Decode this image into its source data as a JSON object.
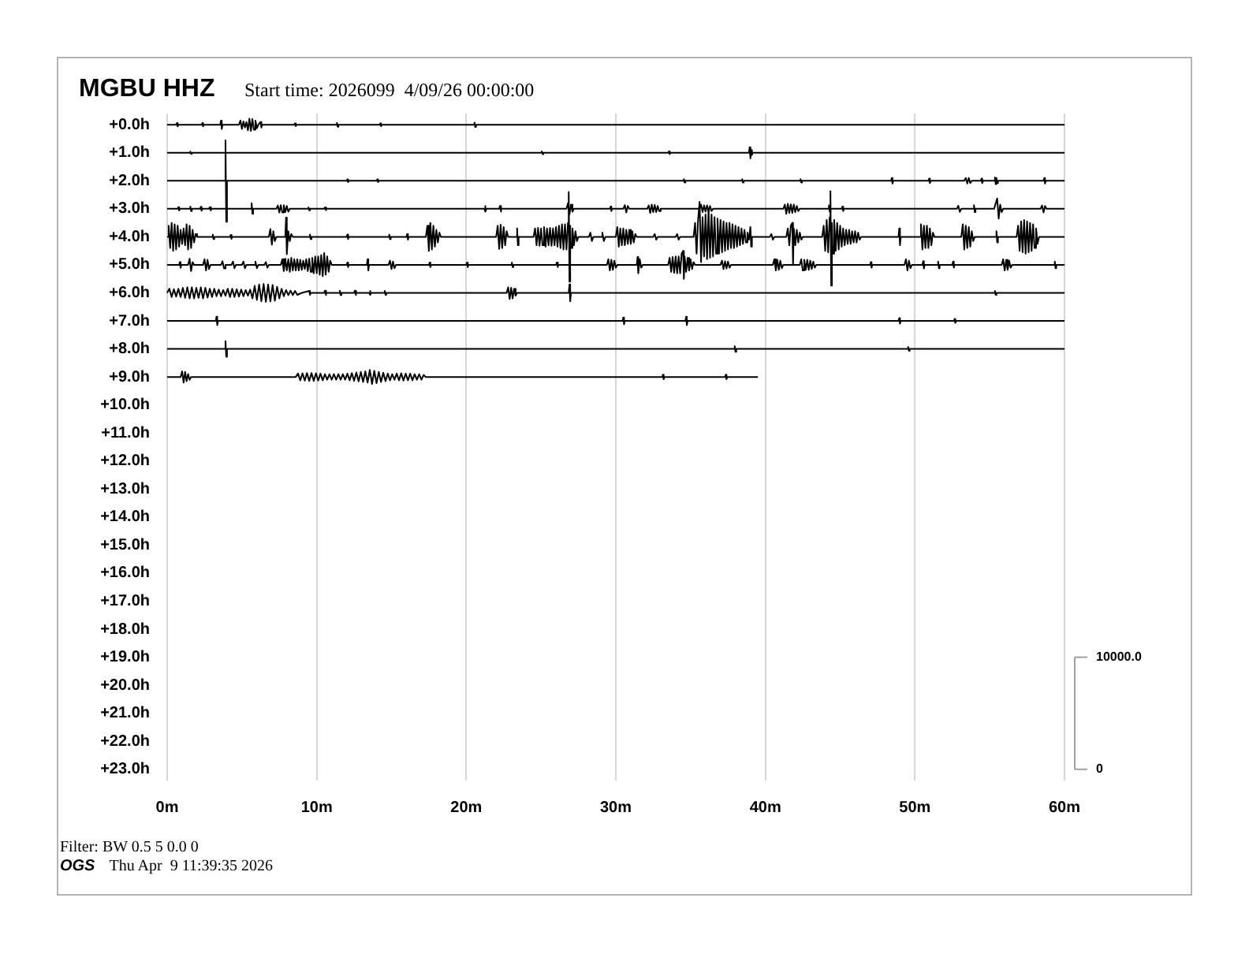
{
  "chart_data": {
    "type": "line",
    "title": "MGBU HHZ",
    "subtitle": "Start time: 2026099  4/09/26 00:00:00",
    "xlim": [
      0,
      60
    ],
    "xticks": [
      {
        "value": 0,
        "label": "0m"
      },
      {
        "value": 10,
        "label": "10m"
      },
      {
        "value": 20,
        "label": "20m"
      },
      {
        "value": 30,
        "label": "30m"
      },
      {
        "value": 40,
        "label": "40m"
      },
      {
        "value": 50,
        "label": "50m"
      },
      {
        "value": 60,
        "label": "60m"
      }
    ],
    "ylim": [
      23.4,
      -0.4
    ],
    "yticks": [
      {
        "value": 0,
        "label": "+0.0h"
      },
      {
        "value": 1,
        "label": "+1.0h"
      },
      {
        "value": 2,
        "label": "+2.0h"
      },
      {
        "value": 3,
        "label": "+3.0h"
      },
      {
        "value": 4,
        "label": "+4.0h"
      },
      {
        "value": 5,
        "label": "+5.0h"
      },
      {
        "value": 6,
        "label": "+6.0h"
      },
      {
        "value": 7,
        "label": "+7.0h"
      },
      {
        "value": 8,
        "label": "+8.0h"
      },
      {
        "value": 9,
        "label": "+9.0h"
      },
      {
        "value": 10,
        "label": "+10.0h"
      },
      {
        "value": 11,
        "label": "+11.0h"
      },
      {
        "value": 12,
        "label": "+12.0h"
      },
      {
        "value": 13,
        "label": "+13.0h"
      },
      {
        "value": 14,
        "label": "+14.0h"
      },
      {
        "value": 15,
        "label": "+15.0h"
      },
      {
        "value": 16,
        "label": "+16.0h"
      },
      {
        "value": 17,
        "label": "+17.0h"
      },
      {
        "value": 18,
        "label": "+18.0h"
      },
      {
        "value": 19,
        "label": "+19.0h"
      },
      {
        "value": 20,
        "label": "+20.0h"
      },
      {
        "value": 21,
        "label": "+21.0h"
      },
      {
        "value": 22,
        "label": "+22.0h"
      },
      {
        "value": 23,
        "label": "+23.0h"
      }
    ],
    "y2lim": [
      -1000,
      58500
    ],
    "y2ticks": [
      0,
      {
        "value": 10000,
        "label": "10000.0"
      }
    ],
    "grid": "x",
    "annotations": [
      "Filter: BW 0.5 5 0.0 0",
      "OGS",
      "Thu Apr  9 11:39:35 2026"
    ],
    "series": [
      {
        "color": "#000000",
        "x": [
          0,
          0.6,
          0.65,
          0.7,
          0.75,
          2.3,
          2.35,
          2.4,
          2.45,
          3.55,
          3.6,
          3.65,
          3.7,
          4.8,
          4.9,
          5.0,
          5.1,
          5.2,
          5.3,
          5.4,
          5.5,
          5.6,
          5.7,
          5.8,
          5.9,
          6.0,
          6.1,
          6.25,
          6.3,
          6.35,
          8.5,
          8.55,
          8.6,
          8.65,
          11.3,
          11.35,
          11.4,
          11.45,
          14.2,
          14.25,
          14.3,
          14.35,
          20.5,
          20.55,
          20.6,
          20.65,
          60
        ],
        "values": [
          0,
          0,
          -0.06,
          0.06,
          0,
          0,
          -0.06,
          0.06,
          0,
          0,
          -0.15,
          0.15,
          0,
          0,
          -0.15,
          0.15,
          -0.12,
          0.1,
          -0.1,
          0.2,
          -0.22,
          0.22,
          -0.2,
          0.18,
          -0.15,
          0.12,
          0,
          -0.1,
          0.1,
          0,
          0,
          -0.05,
          0.05,
          0,
          0,
          -0.07,
          0.07,
          0,
          0,
          -0.05,
          0.05,
          0,
          0,
          -0.08,
          0.08,
          0,
          0
        ]
      },
      {
        "color": "#000000",
        "x": [
          0,
          1.5,
          1.55,
          1.6,
          1.65,
          25,
          25.05,
          25.1,
          25.15,
          33.5,
          33.55,
          33.6,
          33.65,
          38.9,
          38.95,
          39.0,
          39.05,
          39.1,
          39.15,
          60
        ],
        "values": [
          1,
          1,
          0.96,
          1.04,
          1,
          1,
          0.95,
          1.05,
          1,
          1,
          0.95,
          1.05,
          1,
          1,
          0.8,
          1.2,
          0.9,
          1.08,
          1,
          1
        ]
      },
      {
        "color": "#000000",
        "x": [
          0,
          3.85,
          3.9,
          3.95,
          4.0,
          12,
          12.05,
          12.1,
          12.15,
          14,
          14.05,
          14.1,
          14.15,
          34.5,
          34.55,
          34.6,
          34.65,
          38.4,
          38.45,
          38.5,
          38.55,
          42.3,
          42.35,
          42.4,
          42.45,
          48.4,
          48.45,
          48.5,
          48.55,
          50.9,
          50.95,
          51.0,
          51.05,
          53.3,
          53.4,
          53.5,
          53.6,
          53.7,
          53.8,
          54.4,
          54.45,
          54.5,
          54.55,
          55.3,
          55.35,
          55.4,
          55.45,
          55.5,
          55.55,
          58.6,
          58.65,
          58.7,
          58.75,
          60
        ],
        "values": [
          2,
          2,
          0.56,
          3.46,
          2,
          2,
          1.95,
          2.05,
          2,
          2,
          1.95,
          2.05,
          2,
          2,
          1.94,
          2.06,
          2,
          2,
          1.94,
          2.06,
          2,
          2,
          1.94,
          2.06,
          2,
          2,
          1.9,
          2.1,
          2,
          2,
          1.92,
          2.08,
          2,
          2,
          1.9,
          2.1,
          1.9,
          2.08,
          2,
          2,
          1.92,
          2.08,
          2,
          2,
          1.88,
          2.12,
          1.9,
          2.08,
          2,
          2,
          1.9,
          2.1,
          2,
          2
        ]
      },
      {
        "color": "#000000",
        "x": [
          0,
          0.7,
          0.75,
          0.8,
          0.85,
          1.5,
          1.55,
          1.6,
          1.65,
          2.2,
          2.25,
          2.3,
          2.35,
          2.8,
          2.85,
          2.9,
          2.95,
          5.6,
          5.65,
          5.7,
          5.75,
          7.3,
          7.4,
          7.5,
          7.6,
          7.7,
          7.8,
          7.9,
          8.0,
          8.1,
          8.2,
          9.4,
          9.45,
          9.5,
          9.55,
          10.5,
          10.55,
          10.6,
          10.65,
          21.2,
          21.25,
          21.3,
          21.35,
          22.2,
          22.25,
          22.3,
          22.35,
          26.7,
          26.8,
          26.9,
          27.0,
          27.1,
          27.2,
          29.6,
          29.65,
          29.7,
          29.75,
          30.5,
          30.6,
          30.7,
          30.8,
          30.9,
          32.1,
          32.2,
          32.3,
          32.4,
          32.5,
          32.6,
          32.7,
          32.8,
          32.9,
          33.0,
          35.6,
          35.7,
          35.8,
          35.9,
          36.0,
          36.1,
          36.2,
          36.3,
          36.4,
          36.5,
          41.2,
          41.3,
          41.4,
          41.5,
          41.6,
          41.7,
          41.8,
          41.9,
          42.0,
          42.1,
          42.2,
          42.3,
          44.2,
          44.25,
          44.3,
          44.35,
          45.1,
          45.15,
          45.2,
          45.25,
          52.8,
          52.9,
          53.0,
          53.1,
          53.9,
          53.95,
          54.0,
          54.05,
          55.3,
          55.4,
          55.5,
          55.6,
          55.7,
          55.8,
          55.9,
          58.4,
          58.5,
          58.6,
          58.7,
          58.8,
          60
        ],
        "values": [
          3,
          3,
          2.94,
          3.06,
          3,
          3,
          2.92,
          3.08,
          3,
          3,
          2.93,
          3.07,
          3,
          3,
          2.94,
          3.06,
          3,
          3,
          2.8,
          3.18,
          3,
          3,
          2.88,
          3.13,
          2.87,
          3.13,
          2.87,
          3.12,
          2.9,
          3.1,
          3,
          3,
          2.95,
          3.05,
          3,
          3,
          2.95,
          3.05,
          3,
          3,
          2.9,
          3.1,
          3,
          3,
          2.9,
          3.1,
          3,
          3,
          2.8,
          3.2,
          2.85,
          3.1,
          3,
          3,
          2.92,
          3.08,
          3,
          3,
          2.87,
          3.13,
          2.9,
          3,
          3,
          2.88,
          3.15,
          2.85,
          3.12,
          2.86,
          3.12,
          2.9,
          3.08,
          3,
          3,
          2.85,
          3.12,
          2.88,
          3.1,
          2.88,
          3.1,
          2.9,
          3.08,
          3,
          3,
          2.85,
          3.18,
          2.82,
          3.15,
          2.84,
          3.15,
          2.85,
          3.12,
          2.9,
          3.08,
          3,
          3,
          2.88,
          3.1,
          3,
          3,
          2.92,
          3.08,
          3,
          3,
          2.89,
          3.11,
          3,
          3,
          2.87,
          3.12,
          3,
          3,
          2.8,
          2.63,
          3.35,
          2.85,
          3.12,
          3,
          3,
          2.88,
          3.13,
          2.9,
          3,
          3
        ]
      },
      {
        "color": "#000000",
        "x": [
          0,
          0.1,
          0.2,
          0.3,
          0.4,
          0.5,
          0.6,
          0.7,
          0.8,
          0.9,
          1.0,
          1.1,
          1.2,
          1.3,
          1.4,
          1.5,
          1.6,
          1.7,
          1.8,
          1.9,
          2.0,
          3.0,
          3.05,
          3.1,
          3.15,
          4.2,
          4.25,
          4.3,
          4.35,
          6.8,
          6.9,
          7.0,
          7.1,
          7.2,
          7.3,
          7.9,
          7.95,
          8.0,
          8.1,
          8.2,
          8.3,
          8.4,
          9.5,
          9.55,
          9.6,
          9.65,
          12,
          12.05,
          12.1,
          12.15,
          14.8,
          14.85,
          14.9,
          14.95,
          16,
          16.05,
          16.1,
          16.15,
          17.3,
          17.4,
          17.5,
          17.6,
          17.7,
          17.8,
          17.9,
          18.0,
          18.1,
          18.2,
          18.3,
          22.0,
          22.1,
          22.2,
          22.3,
          22.4,
          22.5,
          22.6,
          22.7,
          22.8,
          23.35,
          23.4,
          23.45,
          23.5,
          24.5,
          24.6,
          24.7,
          24.8,
          24.9,
          25.0,
          25.1,
          25.2,
          25.3,
          25.4,
          25.5,
          25.6,
          25.7,
          25.8,
          25.9,
          26.0,
          26.1,
          26.2,
          26.3,
          26.4,
          26.5,
          26.6,
          26.7,
          26.8,
          26.85,
          26.9,
          26.95,
          27.0,
          27.1,
          27.2,
          27.3,
          27.4,
          27.5,
          28.2,
          28.3,
          28.4,
          28.5,
          29.0,
          29.1,
          29.2,
          29.3,
          30.0,
          30.1,
          30.2,
          30.3,
          30.4,
          30.5,
          30.6,
          30.7,
          30.8,
          30.9,
          31.0,
          31.1,
          31.2,
          31.3,
          31.4,
          32.5,
          32.6,
          32.7,
          32.8,
          34,
          34.1,
          34.2,
          34.3,
          35.2,
          35.3,
          35.4,
          35.5,
          35.6,
          35.7,
          35.8,
          35.9,
          36.0,
          36.1,
          36.2,
          36.3,
          36.4,
          36.5,
          36.6,
          36.7,
          36.8,
          36.9,
          37.0,
          37.1,
          37.2,
          37.3,
          37.4,
          37.5,
          37.6,
          37.7,
          37.8,
          37.9,
          38.0,
          38.1,
          38.2,
          38.3,
          38.4,
          38.5,
          38.6,
          38.7,
          38.8,
          38.9,
          39.0,
          39.05,
          39.1,
          40.3,
          40.4,
          40.5,
          40.6,
          41.4,
          41.5,
          41.6,
          41.7,
          41.8,
          41.85,
          41.9,
          42.0,
          42.1,
          42.2,
          42.3,
          42.4,
          42.5,
          43.8,
          43.9,
          44.0,
          44.1,
          44.2,
          44.3,
          44.35,
          44.4,
          44.45,
          44.5,
          44.6,
          44.7,
          44.8,
          44.9,
          45.0,
          45.1,
          45.2,
          45.3,
          45.4,
          45.5,
          45.6,
          45.7,
          45.8,
          45.9,
          46.0,
          46.1,
          46.2,
          46.3,
          46.4,
          48.9,
          48.95,
          49.0,
          49.05,
          50.3,
          50.4,
          50.5,
          50.6,
          50.7,
          50.8,
          50.9,
          51.0,
          51.1,
          51.2,
          51.3,
          53.1,
          53.2,
          53.3,
          53.4,
          53.5,
          53.6,
          53.7,
          53.8,
          53.9,
          54.0,
          55.4,
          55.45,
          55.5,
          55.55,
          56.8,
          56.9,
          57.0,
          57.1,
          57.2,
          57.3,
          57.4,
          57.5,
          57.6,
          57.7,
          57.8,
          57.9,
          58.0,
          58.1,
          58.2,
          58.3,
          60
        ],
        "values": [
          4,
          3.6,
          4.4,
          3.5,
          4.5,
          3.55,
          4.45,
          3.6,
          4.35,
          3.75,
          4.25,
          3.7,
          4.3,
          3.55,
          4.45,
          3.6,
          4.4,
          3.75,
          4.2,
          3.9,
          4,
          4,
          3.92,
          4.08,
          4,
          4,
          3.93,
          4.07,
          4,
          4,
          3.72,
          4.28,
          3.8,
          4.15,
          4,
          4,
          3.31,
          4.62,
          3.8,
          4.15,
          3.9,
          4,
          4,
          3.92,
          4.08,
          4,
          4,
          3.92,
          4.08,
          4,
          4,
          3.92,
          4.08,
          4,
          4,
          3.9,
          4.1,
          4,
          4,
          3.6,
          4.5,
          3.5,
          4.45,
          3.6,
          4.35,
          3.75,
          4.2,
          3.85,
          4,
          4,
          3.6,
          4.43,
          3.57,
          4.4,
          3.65,
          4.3,
          3.8,
          4,
          4,
          3.7,
          4.3,
          4,
          4,
          3.7,
          4.3,
          3.68,
          4.32,
          3.7,
          4.3,
          3.65,
          4.35,
          3.7,
          4.3,
          3.68,
          4.32,
          3.7,
          4.3,
          3.65,
          4.35,
          3.6,
          4.4,
          3.55,
          4.45,
          3.55,
          4.45,
          3.5,
          2.4,
          5.6,
          3.6,
          4.4,
          3.7,
          4.3,
          3.8,
          4.15,
          4,
          4,
          3.85,
          4.15,
          4,
          4,
          3.85,
          4.15,
          4,
          4,
          3.65,
          4.35,
          3.7,
          4.3,
          3.7,
          4.3,
          3.75,
          4.25,
          3.75,
          4.25,
          3.8,
          4.2,
          3.9,
          4,
          4,
          3.9,
          4.1,
          4,
          4,
          3.9,
          4.1,
          4,
          4,
          3.5,
          4.6,
          3.4,
          2.75,
          4.9,
          3.3,
          4.7,
          3.2,
          4.8,
          3.0,
          4.75,
          3.2,
          4.7,
          3.3,
          4.6,
          3.35,
          4.6,
          3.4,
          4.55,
          3.45,
          4.5,
          3.5,
          4.45,
          3.5,
          4.4,
          3.55,
          4.4,
          3.6,
          4.35,
          3.65,
          4.3,
          3.7,
          4.25,
          3.75,
          4.2,
          3.85,
          4.1,
          3.65,
          4.35,
          4,
          4,
          3.9,
          4.1,
          4,
          4,
          3.7,
          4.3,
          3.6,
          3.5,
          5.0,
          3.7,
          4.3,
          3.75,
          4.2,
          3.85,
          4.1,
          4,
          4,
          3.6,
          4.5,
          3.4,
          4.55,
          3.3,
          2.37,
          5.74,
          3.5,
          4.6,
          3.4,
          4.5,
          3.5,
          4.45,
          3.6,
          4.35,
          3.7,
          4.3,
          3.75,
          4.25,
          3.75,
          4.25,
          3.8,
          4.2,
          3.8,
          4.2,
          3.85,
          4.1,
          4,
          4,
          3.7,
          4.3,
          4,
          4,
          3.55,
          4.45,
          3.6,
          4.4,
          3.6,
          4.4,
          3.7,
          4.3,
          3.85,
          4,
          4,
          3.55,
          4.45,
          3.6,
          4.4,
          3.65,
          4.35,
          3.8,
          4.15,
          4,
          4,
          3.8,
          4.2,
          4,
          4,
          3.6,
          4.5,
          3.45,
          4.55,
          3.4,
          4.6,
          3.45,
          4.55,
          3.5,
          4.5,
          3.55,
          4.4,
          3.7,
          4.25,
          4,
          4
        ]
      },
      {
        "color": "#000000",
        "x": [
          0,
          0.8,
          0.85,
          0.9,
          0.95,
          1.4,
          1.5,
          1.6,
          1.7,
          1.8,
          2.4,
          2.5,
          2.6,
          2.7,
          2.8,
          2.9,
          3.6,
          3.7,
          3.8,
          3.9,
          4.3,
          4.4,
          4.5,
          4.6,
          5.0,
          5.1,
          5.2,
          5.3,
          5.8,
          5.9,
          6.0,
          6.1,
          6.5,
          6.6,
          6.7,
          6.8,
          7.6,
          7.7,
          7.8,
          7.9,
          8.0,
          8.1,
          8.2,
          8.3,
          8.4,
          8.5,
          8.6,
          8.7,
          8.8,
          8.9,
          9.0,
          9.1,
          9.2,
          9.3,
          9.4,
          9.5,
          9.6,
          9.7,
          9.8,
          9.9,
          10.0,
          10.1,
          10.2,
          10.3,
          10.4,
          10.5,
          10.6,
          10.7,
          10.8,
          10.9,
          11.0,
          12,
          12.05,
          12.1,
          12.15,
          13.35,
          13.4,
          13.45,
          13.5,
          14.8,
          14.9,
          15.0,
          15.1,
          15.2,
          15.3,
          17.5,
          17.55,
          17.6,
          17.65,
          20,
          20.05,
          20.1,
          20.15,
          23,
          23.05,
          23.1,
          23.15,
          26,
          26.05,
          26.1,
          26.15,
          29.4,
          29.5,
          29.6,
          29.7,
          29.8,
          29.9,
          30.0,
          30.1,
          31.4,
          31.45,
          31.5,
          31.6,
          31.7,
          31.8,
          33.5,
          33.6,
          33.7,
          33.8,
          33.9,
          34.0,
          34.1,
          34.2,
          34.3,
          34.4,
          34.5,
          34.55,
          34.6,
          34.7,
          34.8,
          34.9,
          35.0,
          35.1,
          35.2,
          35.3,
          37.0,
          37.1,
          37.2,
          37.3,
          37.4,
          37.5,
          37.6,
          37.7,
          40.5,
          40.6,
          40.7,
          40.8,
          40.9,
          41.0,
          41.1,
          41.2,
          42.3,
          42.4,
          42.5,
          42.6,
          42.7,
          42.8,
          42.9,
          43.0,
          43.1,
          43.2,
          43.3,
          43.4,
          47,
          47.05,
          47.1,
          47.15,
          49.3,
          49.4,
          49.5,
          49.6,
          49.7,
          49.8,
          50.5,
          50.55,
          50.6,
          50.65,
          51.5,
          51.55,
          51.6,
          51.65,
          52.5,
          52.55,
          52.6,
          52.65,
          55.8,
          55.9,
          56.0,
          56.1,
          56.2,
          56.3,
          56.4,
          56.5,
          59.3,
          59.35,
          59.4,
          59.45,
          60
        ],
        "values": [
          5,
          5,
          4.9,
          5.1,
          5,
          5,
          4.78,
          5.22,
          4.9,
          5,
          5,
          4.8,
          5.2,
          4.82,
          5.15,
          5,
          5,
          4.87,
          5.13,
          5,
          5,
          4.88,
          5.12,
          5,
          5,
          4.88,
          5.12,
          5,
          5,
          4.88,
          5.12,
          5,
          5,
          4.9,
          5.1,
          5,
          5,
          4.8,
          5.22,
          4.78,
          5.2,
          4.8,
          5.25,
          4.75,
          5.2,
          4.8,
          5.2,
          4.8,
          5.2,
          4.82,
          5.18,
          4.85,
          5.15,
          4.8,
          5.22,
          4.78,
          5.25,
          4.75,
          5.3,
          4.7,
          5.3,
          4.7,
          5.35,
          4.65,
          5.4,
          4.58,
          5.35,
          4.7,
          5.25,
          4.85,
          5,
          5,
          4.92,
          5.08,
          5,
          5,
          4.8,
          5.2,
          5,
          5,
          4.85,
          5.15,
          4.88,
          5.12,
          5,
          5,
          4.92,
          5.08,
          5,
          5,
          4.92,
          5.08,
          5,
          5,
          4.92,
          5.08,
          5,
          5,
          4.92,
          5.08,
          5,
          5,
          4.8,
          5.2,
          4.82,
          5.18,
          4.85,
          5.1,
          5,
          5,
          4.72,
          5.3,
          4.8,
          5.1,
          5,
          5,
          4.75,
          5.25,
          4.72,
          5.28,
          4.7,
          5.3,
          4.7,
          5.3,
          4.6,
          4.5,
          5.5,
          4.7,
          5.25,
          4.75,
          5.2,
          4.8,
          5.15,
          4.9,
          5,
          5,
          4.85,
          5.15,
          4.87,
          5.13,
          4.88,
          5.1,
          5,
          5,
          4.8,
          5.2,
          4.82,
          5.18,
          4.85,
          5.12,
          5,
          5,
          4.8,
          5.2,
          4.82,
          5.18,
          4.82,
          5.18,
          4.85,
          5.15,
          4.88,
          5.1,
          5,
          5,
          4.9,
          5.1,
          5,
          5,
          4.8,
          5.2,
          4.85,
          5.12,
          5,
          5,
          4.87,
          5.13,
          5,
          5,
          4.88,
          5.12,
          5,
          5,
          4.88,
          5.1,
          5,
          5,
          4.8,
          5.2,
          4.82,
          5.18,
          4.85,
          5.1,
          5,
          5,
          4.88,
          5.12,
          5,
          5
        ]
      },
      {
        "color": "#000000",
        "x": [
          0,
          0.15,
          0.3,
          0.45,
          0.6,
          0.75,
          0.9,
          1.05,
          1.2,
          1.35,
          1.5,
          1.65,
          1.8,
          1.95,
          2.1,
          2.25,
          2.4,
          2.55,
          2.7,
          2.85,
          3.0,
          3.15,
          3.3,
          3.45,
          3.6,
          3.75,
          3.9,
          4.05,
          4.2,
          4.35,
          4.5,
          4.65,
          4.8,
          4.95,
          5.1,
          5.25,
          5.4,
          5.55,
          5.7,
          5.85,
          6.0,
          6.15,
          6.3,
          6.45,
          6.6,
          6.75,
          6.9,
          7.05,
          7.2,
          7.35,
          7.5,
          7.65,
          7.8,
          7.95,
          8.1,
          8.25,
          8.4,
          8.55,
          8.7,
          9.0,
          9.5,
          9.55,
          9.6,
          10.5,
          10.55,
          10.6,
          10.65,
          11.5,
          11.55,
          11.6,
          11.65,
          12.5,
          12.55,
          12.6,
          12.65,
          13.5,
          13.55,
          13.6,
          13.65,
          14.5,
          14.55,
          14.6,
          14.65,
          22.7,
          22.8,
          22.9,
          23.0,
          23.1,
          23.2,
          23.3,
          23.4,
          26.85,
          26.9,
          26.95,
          27.0,
          55.3,
          55.35,
          55.4,
          55.45,
          60
        ],
        "values": [
          6,
          5.85,
          6.15,
          5.87,
          6.13,
          5.85,
          6.15,
          5.82,
          6.18,
          5.8,
          6.2,
          5.8,
          6.2,
          5.82,
          6.18,
          5.8,
          6.2,
          5.82,
          6.17,
          5.85,
          6.15,
          5.85,
          6.12,
          5.88,
          6.12,
          5.9,
          6.1,
          5.85,
          6.15,
          5.85,
          6.15,
          5.87,
          6.13,
          5.88,
          6.12,
          5.9,
          6.1,
          5.88,
          6.2,
          5.75,
          6.25,
          5.7,
          6.3,
          5.68,
          6.32,
          5.7,
          6.3,
          5.72,
          6.28,
          5.78,
          6.2,
          5.85,
          6.12,
          5.9,
          6.08,
          5.92,
          6.08,
          5.93,
          6.07,
          6,
          5.93,
          6.07,
          6,
          6,
          5.92,
          6.08,
          6,
          6,
          5.92,
          6.08,
          6,
          6,
          5.92,
          6.08,
          6,
          6,
          5.93,
          6.07,
          6,
          6,
          5.93,
          6.07,
          6,
          6,
          5.8,
          6.22,
          5.82,
          6.2,
          5.85,
          6.1,
          6,
          6,
          5.7,
          6.3,
          6,
          6,
          5.93,
          6.07,
          6,
          6
        ]
      },
      {
        "color": "#000000",
        "x": [
          0,
          3.25,
          3.3,
          3.35,
          3.4,
          30.45,
          30.5,
          30.55,
          30.6,
          34.65,
          34.7,
          34.75,
          34.8,
          48.9,
          48.95,
          49.0,
          49.05,
          52.6,
          52.65,
          52.7,
          52.75,
          60
        ],
        "values": [
          7,
          7,
          6.85,
          7.15,
          7,
          7,
          6.88,
          7.12,
          7,
          7,
          6.85,
          7.15,
          7,
          7,
          6.9,
          7.1,
          7,
          7,
          6.93,
          7.07,
          7,
          7
        ]
      },
      {
        "color": "#000000",
        "x": [
          0,
          3.85,
          3.9,
          3.95,
          4.0,
          37.9,
          37.95,
          38.0,
          38.05,
          49.5,
          49.55,
          49.6,
          49.65,
          60
        ],
        "values": [
          8,
          8,
          7.72,
          8.28,
          8,
          8,
          7.9,
          8.1,
          8,
          8,
          7.93,
          8.07,
          8,
          8
        ]
      },
      {
        "color": "#000000",
        "x": [
          0,
          0.9,
          1.0,
          1.1,
          1.2,
          1.3,
          1.4,
          1.5,
          1.6,
          8.6,
          8.75,
          8.9,
          9.05,
          9.2,
          9.35,
          9.5,
          9.65,
          9.8,
          9.95,
          10.1,
          10.25,
          10.4,
          10.55,
          10.7,
          10.85,
          11.0,
          11.15,
          11.3,
          11.45,
          11.6,
          11.75,
          11.9,
          12.05,
          12.2,
          12.35,
          12.5,
          12.65,
          12.8,
          12.95,
          13.1,
          13.25,
          13.4,
          13.55,
          13.7,
          13.85,
          14.0,
          14.15,
          14.3,
          14.45,
          14.6,
          14.75,
          14.9,
          15.05,
          15.2,
          15.35,
          15.5,
          15.65,
          15.8,
          15.95,
          16.1,
          16.25,
          16.4,
          16.55,
          16.7,
          16.85,
          17.0,
          17.15,
          17.3,
          33.1,
          33.15,
          33.2,
          33.25,
          37.3,
          37.35,
          37.4,
          37.45,
          39.5
        ],
        "values": [
          9,
          9,
          8.8,
          9.2,
          8.82,
          9.15,
          8.9,
          9.1,
          9,
          9,
          8.88,
          9.12,
          8.87,
          9.13,
          8.86,
          9.14,
          8.86,
          9.14,
          8.87,
          9.13,
          8.88,
          9.12,
          8.9,
          9.1,
          8.9,
          9.1,
          8.9,
          9.1,
          8.9,
          9.1,
          8.9,
          9.1,
          8.88,
          9.12,
          8.86,
          9.14,
          8.84,
          9.16,
          8.82,
          9.18,
          8.8,
          9.2,
          8.75,
          9.25,
          8.78,
          9.22,
          8.82,
          9.18,
          8.85,
          9.15,
          8.88,
          9.12,
          8.9,
          9.1,
          8.88,
          9.12,
          8.87,
          9.13,
          8.88,
          9.12,
          8.88,
          9.12,
          8.9,
          9.1,
          8.9,
          9.1,
          8.93,
          9,
          9,
          8.92,
          9.08,
          9,
          9,
          8.92,
          9.08,
          9,
          9
        ]
      }
    ]
  }
}
